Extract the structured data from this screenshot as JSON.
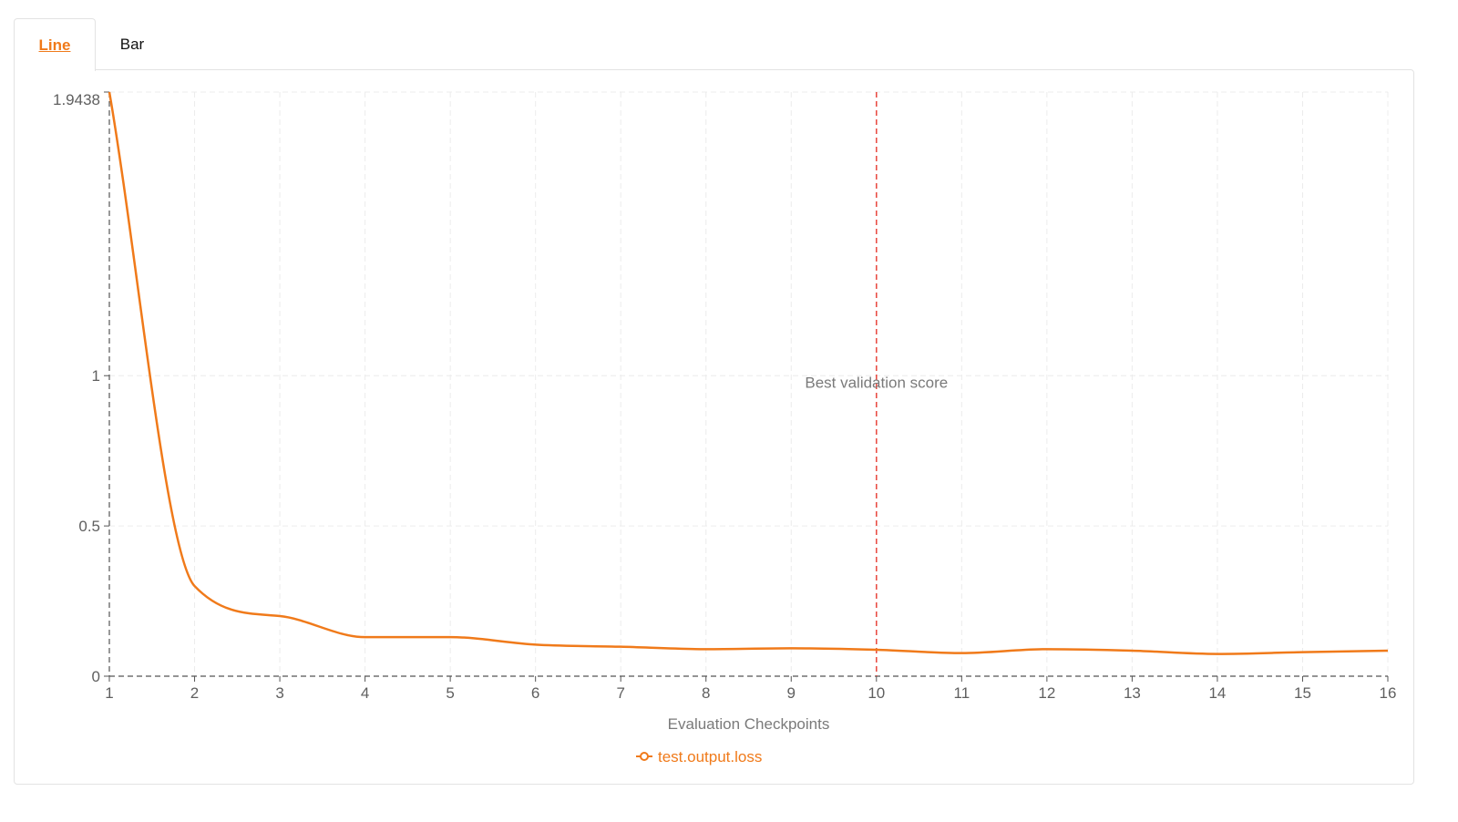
{
  "tabs": [
    {
      "label": "Line",
      "active": true
    },
    {
      "label": "Bar",
      "active": false
    }
  ],
  "chart_data": {
    "type": "line",
    "x": [
      1,
      2,
      3,
      4,
      5,
      6,
      7,
      8,
      9,
      10,
      11,
      12,
      13,
      14,
      15,
      16
    ],
    "series": [
      {
        "name": "test.output.loss",
        "color": "#f07a1a",
        "values": [
          1.9438,
          0.3,
          0.2,
          0.13,
          0.13,
          0.105,
          0.098,
          0.09,
          0.093,
          0.088,
          0.077,
          0.09,
          0.085,
          0.074,
          0.08,
          0.085
        ]
      }
    ],
    "xlabel": "Evaluation Checkpoints",
    "ylabel": "",
    "xlim": [
      1,
      16
    ],
    "ylim": [
      0,
      1.9438
    ],
    "xticks": [
      "1",
      "2",
      "3",
      "4",
      "5",
      "6",
      "7",
      "8",
      "9",
      "10",
      "11",
      "12",
      "13",
      "14",
      "15",
      "16"
    ],
    "yticks": [
      {
        "value": 0,
        "label": "0"
      },
      {
        "value": 0.5,
        "label": "0.5"
      },
      {
        "value": 1,
        "label": "1"
      },
      {
        "value": 1.9438,
        "label": "1.9438"
      }
    ],
    "grid": true,
    "annotation": {
      "x": 10,
      "label": "Best validation score",
      "color": "#e8453c"
    },
    "legend_position": "bottom-center"
  }
}
